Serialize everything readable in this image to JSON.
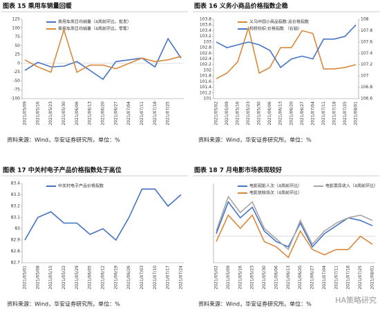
{
  "chart_data": [
    {
      "type": "line",
      "title": "图表 15 乘用车销量回暖",
      "source": "资料来源：Wind，华安证券研究所。单位：%",
      "categories": [
        "2021/05/09",
        "2021/05/16",
        "2021/05/23",
        "2021/05/30",
        "2021/06/06",
        "2021/06/13",
        "2021/06/20",
        "2021/06/27",
        "2021/07/04",
        "2021/07/11",
        "2021/07/18",
        "2021/07/25",
        null
      ],
      "series": [
        {
          "name": "乘用车周日均销量（4周前环比，批发）",
          "color": "#4472c4",
          "values": [
            -20,
            3,
            -10,
            -8,
            5,
            -20,
            -45,
            5,
            10,
            15,
            -10,
            70,
            15
          ]
        },
        {
          "name": "乘用车周日均销量（4周前环比，零售）",
          "color": "#d9883a",
          "values": [
            10,
            -10,
            -25,
            95,
            -25,
            -5,
            -5,
            -15,
            0,
            15,
            5,
            10,
            20
          ]
        }
      ],
      "ylim": [
        -100,
        125
      ],
      "yticks": [
        -100,
        -75,
        -50,
        -25,
        0,
        25,
        50,
        75,
        100,
        125
      ]
    },
    {
      "type": "line",
      "title": "图表 16 义务小商品价格指数企稳",
      "source": "资料来源：Wind，华安证券研究所。单位：%",
      "categories": [
        "2021/05/02",
        "2021/05/09",
        "2021/05/16",
        "2021/05/23",
        "2021/05/30",
        "2021/06/06",
        "2021/06/13",
        "2021/06/20",
        "2021/06/27",
        "2021/07/04",
        "2021/07/11",
        "2021/07/18",
        "2021/07/25",
        "2021/08/01"
      ],
      "series": [
        {
          "name": "义乌中国小商品指数:总价格指数",
          "color": "#d9883a",
          "values": [
            101.7,
            101.9,
            102.3,
            103.5,
            101.9,
            102.1,
            102.8,
            102.8,
            103.4,
            103.3,
            102.05,
            102.05,
            102.1,
            102.2
          ]
        },
        {
          "name": "柯桥纺织:价格指数 （右轴）",
          "color": "#4472c4",
          "axis": "y2",
          "values": [
            107.6,
            107.5,
            107.55,
            107.6,
            107.55,
            107.45,
            107.15,
            107.3,
            107.35,
            107.3,
            107.65,
            107.65,
            107.7,
            107.9
          ]
        }
      ],
      "ylim": [
        101,
        103.8
      ],
      "yticks": [
        101,
        101.2,
        101.4,
        101.6,
        101.8,
        102,
        102.2,
        102.4,
        102.6,
        102.8,
        103,
        103.2,
        103.4,
        103.6,
        103.8
      ],
      "y2lim": [
        106.6,
        108
      ],
      "y2ticks": [
        106.6,
        106.8,
        107,
        107.2,
        107.4,
        107.6,
        107.8,
        108
      ]
    },
    {
      "type": "line",
      "title": "图表 17 中关村电子产品价格指数处于高位",
      "source": "资料来源：Wind，华安证券研究所。单位：%",
      "categories": [
        "2021/05/01",
        "2021/05/08",
        "2021/05/15",
        "2021/05/22",
        "2021/05/29",
        "2021/06/05",
        "2021/06/12",
        "2021/06/19",
        "2021/06/26",
        "2021/07/03",
        "2021/07/10",
        "2021/07/17",
        "2021/07/24"
      ],
      "series": [
        {
          "name": "中关村电子产品价格指数",
          "color": "#4472c4",
          "values": [
            82.9,
            83.1,
            83.15,
            83.05,
            83.05,
            82.95,
            83.0,
            82.9,
            83.1,
            83.35,
            83.35,
            83.2,
            83.3
          ]
        }
      ],
      "ylim": [
        82.7,
        83.4
      ],
      "yticks": [
        82.7,
        82.8,
        82.9,
        83,
        83.1,
        83.2,
        83.3,
        83.4
      ]
    },
    {
      "type": "line",
      "title": "图表 18 7 月电影市场表现较好",
      "source": "资料来源：Wind，华安证券研究所。单位：%",
      "categories": [
        "2021/05/02",
        "2021/05/09",
        "2021/05/16",
        "2021/05/23",
        "2021/05/30",
        "2021/06/06",
        "2021/06/13",
        "2021/06/20",
        "2021/06/27",
        "2021/07/04",
        "2021/07/11",
        "2021/07/18",
        "2021/07/25",
        "2021/08/01"
      ],
      "series": [
        {
          "name": "电影观影人次（4周前环比）",
          "color": "#4472c4",
          "values": [
            10,
            130,
            70,
            110,
            20,
            -20,
            -40,
            50,
            -40,
            10,
            40,
            70,
            60,
            40
          ]
        },
        {
          "name": "电影票房收入（4周前环比）",
          "color": "#a5a5a5",
          "values": [
            20,
            150,
            90,
            130,
            30,
            -10,
            -50,
            60,
            -30,
            20,
            50,
            70,
            80,
            60
          ]
        },
        {
          "name": "电影放映场次（4周前环比）",
          "color": "#d9883a",
          "values": [
            -20,
            80,
            30,
            80,
            -20,
            -40,
            -80,
            20,
            -50,
            -70,
            -50,
            -50,
            0,
            -30
          ]
        }
      ],
      "ylim": [
        -100,
        200
      ]
    }
  ],
  "watermark": "HA策略研究"
}
